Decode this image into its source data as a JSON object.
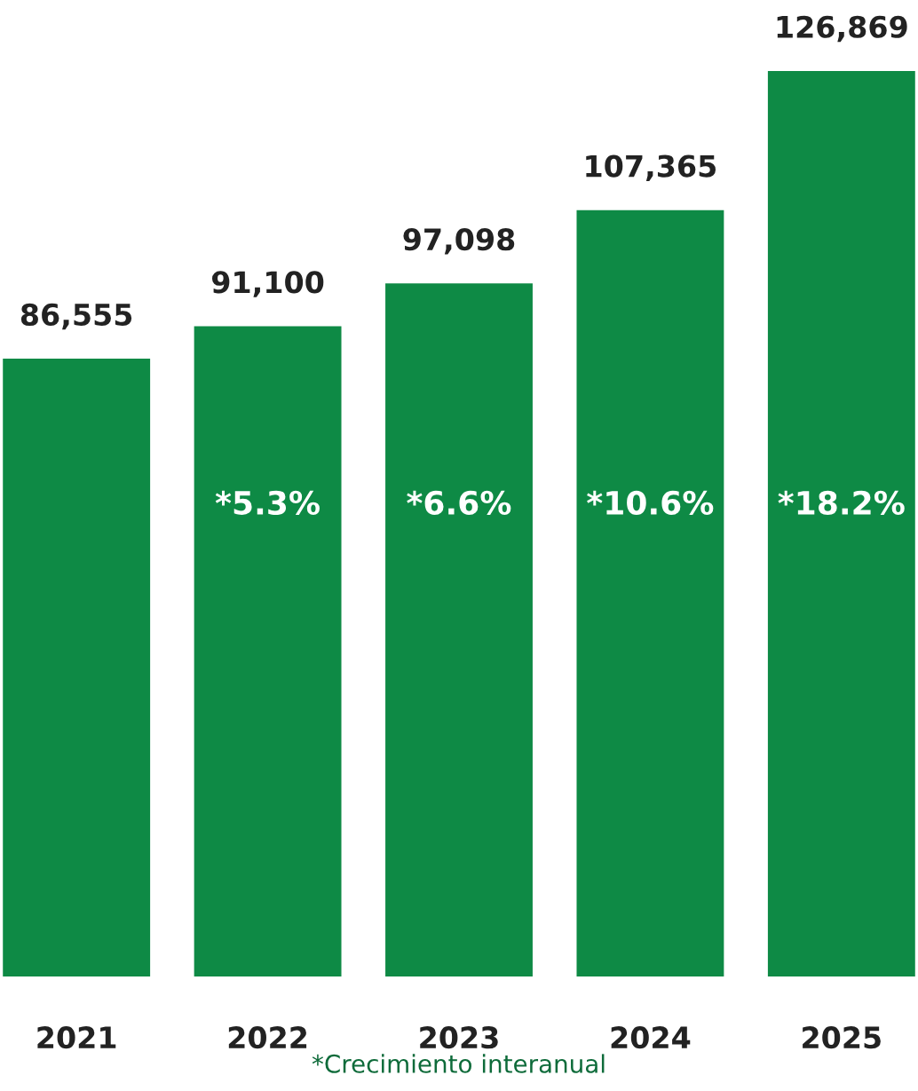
{
  "chart_data": {
    "type": "bar",
    "categories": [
      "2021",
      "2022",
      "2023",
      "2024",
      "2025"
    ],
    "values": [
      86555,
      91100,
      97098,
      107365,
      126869
    ],
    "value_labels": [
      "86,555",
      "91,100",
      "97,098",
      "107,365",
      "126,869"
    ],
    "color": "#0e8a45",
    "annotations": [
      "*5.3%",
      "*6.6%",
      "*10.6%",
      "*18.2%",
      "*Crecimiento interanual"
    ],
    "grid": false,
    "legend": false
  }
}
